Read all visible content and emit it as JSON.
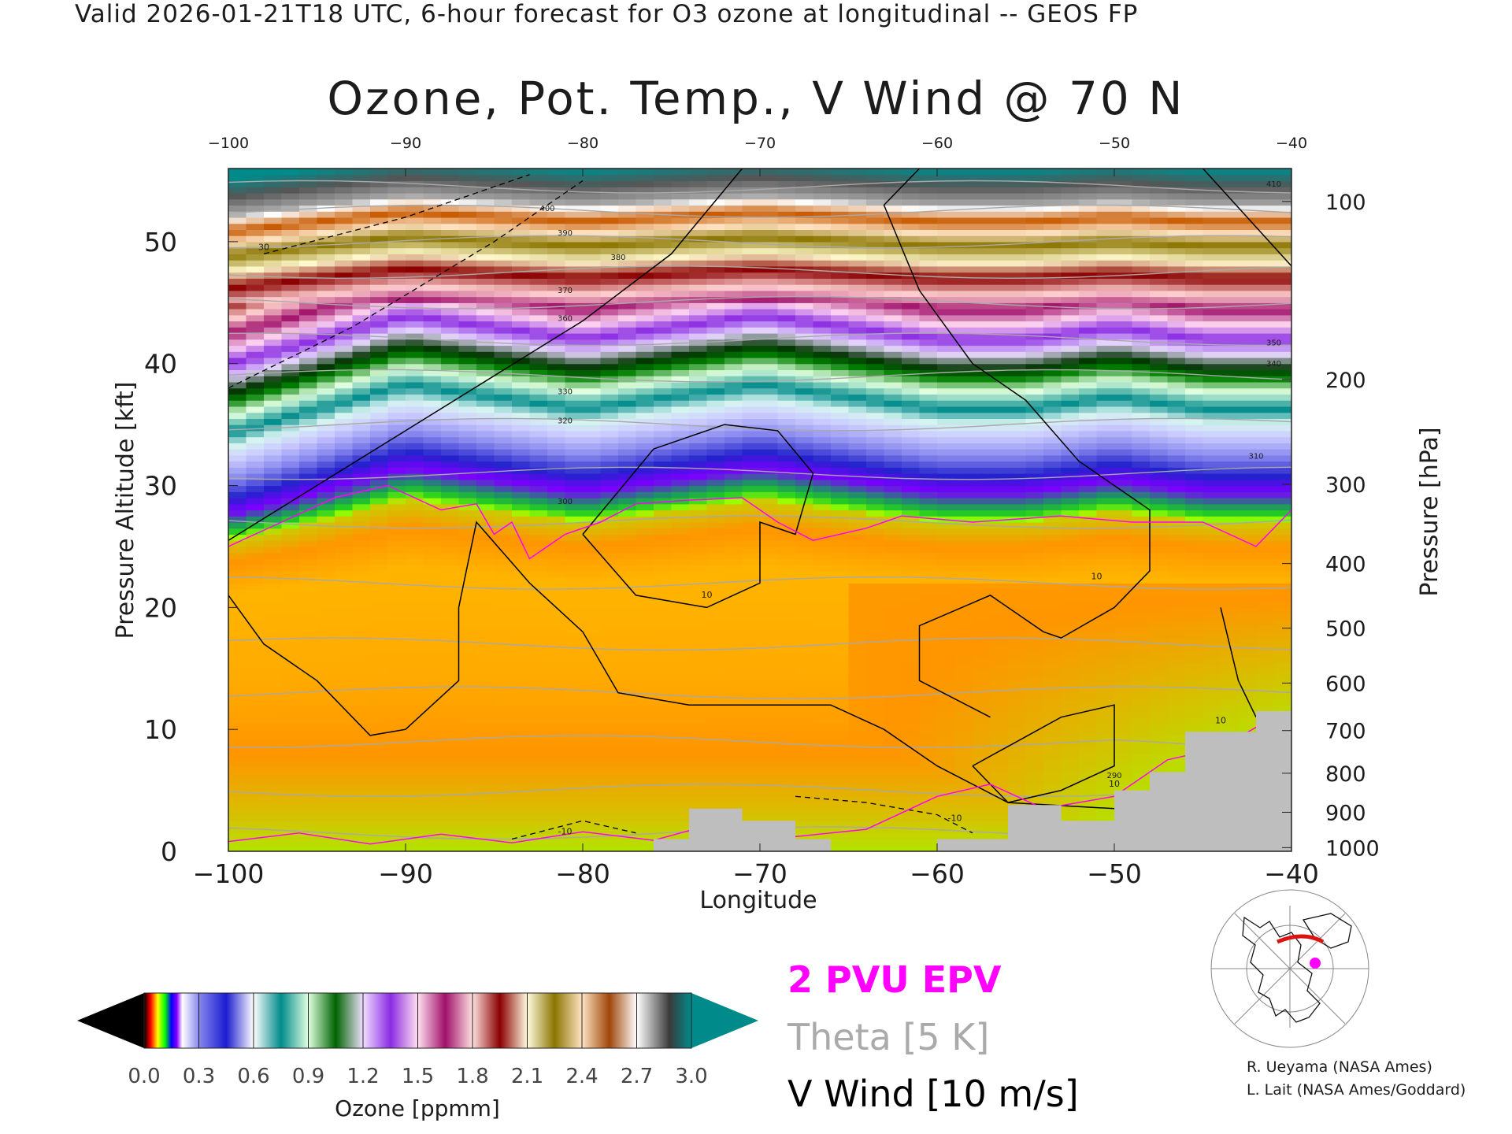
{
  "header": "Valid 2026-01-21T18 UTC, 6-hour forecast for O3 ozone at longitudinal -- GEOS FP",
  "chart_data": {
    "type": "heatmap",
    "title": "Ozone, Pot. Temp., V Wind @ 70 N",
    "xlabel": "Longitude",
    "ylabel": "Pressure Altitude [kft]",
    "y2label": "Pressure [hPa]",
    "xlim": [
      -100,
      -40
    ],
    "ylim": [
      0,
      56
    ],
    "x_ticks": [
      -100,
      -90,
      -80,
      -70,
      -60,
      -50,
      -40
    ],
    "x_tick_labels": [
      "−100",
      "−90",
      "−80",
      "−70",
      "−60",
      "−50",
      "−40"
    ],
    "x_top_tick_labels": [
      "−100",
      "−90",
      "−80",
      "−70",
      "−60",
      "−50",
      "−40"
    ],
    "y_ticks": [
      0,
      10,
      20,
      30,
      40,
      50
    ],
    "pressure_ticks": [
      {
        "label": "100",
        "kft": 53.3
      },
      {
        "label": "200",
        "kft": 38.7
      },
      {
        "label": "300",
        "kft": 30.1
      },
      {
        "label": "400",
        "kft": 23.6
      },
      {
        "label": "500",
        "kft": 18.3
      },
      {
        "label": "600",
        "kft": 13.8
      },
      {
        "label": "700",
        "kft": 9.9
      },
      {
        "label": "800",
        "kft": 6.4
      },
      {
        "label": "900",
        "kft": 3.2
      },
      {
        "label": "1000",
        "kft": 0.3
      }
    ],
    "ozone_ppmm_profile": [
      {
        "kft": 0,
        "ppmm": 0.085
      },
      {
        "kft": 3,
        "ppmm": 0.078
      },
      {
        "kft": 8,
        "ppmm": 0.07
      },
      {
        "kft": 14,
        "ppmm": 0.06
      },
      {
        "kft": 22,
        "ppmm": 0.055
      },
      {
        "kft": 27,
        "ppmm": 0.08
      },
      {
        "kft": 30,
        "ppmm": 0.25
      },
      {
        "kft": 34,
        "ppmm": 0.5
      },
      {
        "kft": 38,
        "ppmm": 0.85
      },
      {
        "kft": 42,
        "ppmm": 1.35
      },
      {
        "kft": 46,
        "ppmm": 1.85
      },
      {
        "kft": 50,
        "ppmm": 2.45
      },
      {
        "kft": 53,
        "ppmm": 2.9
      },
      {
        "kft": 56,
        "ppmm": 3.0
      }
    ],
    "tropopause_kft_by_lon": [
      {
        "lon": -100,
        "kft": 26
      },
      {
        "lon": -95,
        "kft": 28
      },
      {
        "lon": -90,
        "kft": 30
      },
      {
        "lon": -85,
        "kft": 29
      },
      {
        "lon": -80,
        "kft": 28
      },
      {
        "lon": -75,
        "kft": 29
      },
      {
        "lon": -70,
        "kft": 30
      },
      {
        "lon": -65,
        "kft": 29
      },
      {
        "lon": -60,
        "kft": 28
      },
      {
        "lon": -55,
        "kft": 28
      },
      {
        "lon": -50,
        "kft": 29
      },
      {
        "lon": -45,
        "kft": 28
      },
      {
        "lon": -40,
        "kft": 28
      }
    ],
    "theta_contours_K": [
      260,
      270,
      280,
      290,
      300,
      310,
      320,
      330,
      340,
      350,
      360,
      370,
      380,
      390,
      400,
      410
    ],
    "theta_labels": [
      {
        "label": "410",
        "lon": -41,
        "kft": 54.5
      },
      {
        "label": "400",
        "lon": -82,
        "kft": 52.5
      },
      {
        "label": "390",
        "lon": -81,
        "kft": 50.5
      },
      {
        "label": "380",
        "lon": -78,
        "kft": 48.5
      },
      {
        "label": "370",
        "lon": -81,
        "kft": 45.8
      },
      {
        "label": "360",
        "lon": -81,
        "kft": 43.5
      },
      {
        "label": "350",
        "lon": -41,
        "kft": 41.5
      },
      {
        "label": "340",
        "lon": -41,
        "kft": 39.8
      },
      {
        "label": "330",
        "lon": -81,
        "kft": 37.5
      },
      {
        "label": "320",
        "lon": -81,
        "kft": 35.1
      },
      {
        "label": "310",
        "lon": -42,
        "kft": 32.2
      },
      {
        "label": "300",
        "lon": -81,
        "kft": 28.5
      },
      {
        "label": "290",
        "lon": -50,
        "kft": 6
      }
    ],
    "v_wind_contour_labels": [
      {
        "label": "10",
        "lon": -73,
        "kft": 20.8
      },
      {
        "label": "10",
        "lon": -51,
        "kft": 22.3
      },
      {
        "label": "10",
        "lon": -50,
        "kft": 5.3
      },
      {
        "label": "10",
        "lon": -44,
        "kft": 10.5
      },
      {
        "label": "-10",
        "lon": -59,
        "kft": 2.5
      },
      {
        "label": "-10",
        "lon": -81,
        "kft": 1.4
      },
      {
        "label": "30",
        "lon": -98,
        "kft": 49.3
      }
    ],
    "colorbar": {
      "label": "Ozone [ppmm]",
      "min": 0.0,
      "max": 3.0,
      "tick_labels": [
        "0.0",
        "0.3",
        "0.6",
        "0.9",
        "1.2",
        "1.5",
        "1.8",
        "2.1",
        "2.4",
        "2.7",
        "3.0"
      ],
      "under_color": "#000000",
      "over_color": "#008b8b"
    },
    "legend": [
      {
        "label": "2 PVU EPV",
        "color": "#ff00ff"
      },
      {
        "label": "Theta [5 K]",
        "color": "#aaaaaa"
      },
      {
        "label": "V Wind [10 m/s]",
        "color": "#000000"
      }
    ]
  },
  "credits": [
    "R. Ueyama (NASA Ames)",
    "L. Lait (NASA Ames/Goddard)"
  ],
  "colors": {
    "stratosphere_teal": "#008b8b",
    "terrain_gray": "#bebebe",
    "epv_magenta": "#ff00ff",
    "theta_gray": "#a9a9a9",
    "wind_black": "#000000"
  }
}
